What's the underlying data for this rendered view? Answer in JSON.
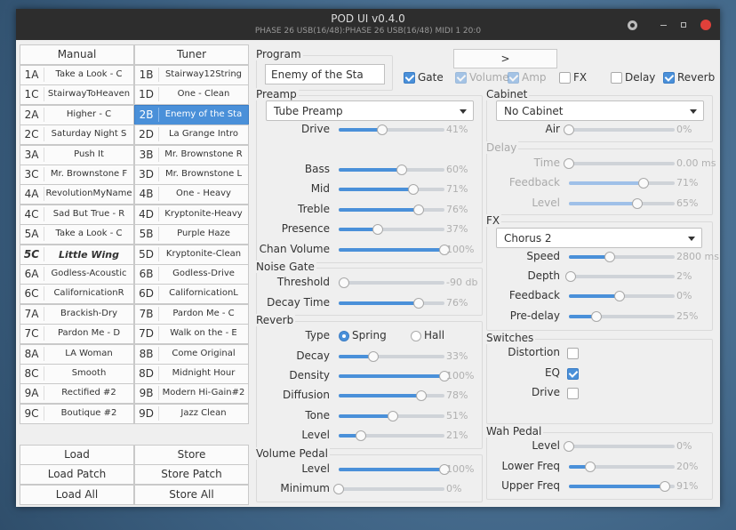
{
  "window": {
    "title": "POD UI v0.4.0",
    "subtitle": "PHASE 26 USB(16/48):PHASE 26 USB(16/48) MIDI 1 20:0"
  },
  "tabs": [
    "Manual",
    "Tuner"
  ],
  "programs": [
    [
      {
        "id": "1A",
        "name": "Take a Look - C"
      },
      {
        "id": "1B",
        "name": "Stairway12String"
      }
    ],
    [
      {
        "id": "1C",
        "name": "StairwayToHeaven"
      },
      {
        "id": "1D",
        "name": "One - Clean"
      }
    ],
    [
      {
        "id": "2A",
        "name": "Higher - C"
      },
      {
        "id": "2B",
        "name": "Enemy of the Sta",
        "selected": true
      }
    ],
    [
      {
        "id": "2C",
        "name": "Saturday Night S"
      },
      {
        "id": "2D",
        "name": "La Grange Intro"
      }
    ],
    [
      {
        "id": "3A",
        "name": "Push It"
      },
      {
        "id": "3B",
        "name": "Mr. Brownstone R"
      }
    ],
    [
      {
        "id": "3C",
        "name": "Mr. Brownstone F"
      },
      {
        "id": "3D",
        "name": "Mr. Brownstone L"
      }
    ],
    [
      {
        "id": "4A",
        "name": "RevolutionMyName"
      },
      {
        "id": "4B",
        "name": "One - Heavy"
      }
    ],
    [
      {
        "id": "4C",
        "name": "Sad But True - R"
      },
      {
        "id": "4D",
        "name": "Kryptonite-Heavy"
      }
    ],
    [
      {
        "id": "5A",
        "name": "Take a Look - C"
      },
      {
        "id": "5B",
        "name": "Purple Haze"
      }
    ],
    [
      {
        "id": "5C",
        "name": "Little Wing",
        "current": true
      },
      {
        "id": "5D",
        "name": "Kryptonite-Clean"
      }
    ],
    [
      {
        "id": "6A",
        "name": "Godless-Acoustic"
      },
      {
        "id": "6B",
        "name": "Godless-Drive"
      }
    ],
    [
      {
        "id": "6C",
        "name": "CalifornicationR"
      },
      {
        "id": "6D",
        "name": "CalifornicationL"
      }
    ],
    [
      {
        "id": "7A",
        "name": "Brackish-Dry"
      },
      {
        "id": "7B",
        "name": "Pardon Me - C"
      }
    ],
    [
      {
        "id": "7C",
        "name": "Pardon Me - D"
      },
      {
        "id": "7D",
        "name": "Walk on the - E"
      }
    ],
    [
      {
        "id": "8A",
        "name": "LA Woman"
      },
      {
        "id": "8B",
        "name": "Come Original"
      }
    ],
    [
      {
        "id": "8C",
        "name": "Smooth"
      },
      {
        "id": "8D",
        "name": "Midnight Hour"
      }
    ],
    [
      {
        "id": "9A",
        "name": "Rectified #2"
      },
      {
        "id": "9B",
        "name": "Modern Hi-Gain#2"
      }
    ],
    [
      {
        "id": "9C",
        "name": "Boutique #2"
      },
      {
        "id": "9D",
        "name": "Jazz Clean"
      }
    ]
  ],
  "file_buttons": [
    [
      "Load",
      "Store"
    ],
    [
      "Load Patch",
      "Store Patch"
    ],
    [
      "Load All",
      "Store All"
    ]
  ],
  "program": {
    "label": "Program",
    "name": "Enemy of the Sta",
    "next": ">"
  },
  "toggles": [
    {
      "label": "Gate",
      "checked": true,
      "enabled": true
    },
    {
      "label": "Volume",
      "checked": true,
      "enabled": false
    },
    {
      "label": "Amp",
      "checked": true,
      "enabled": false
    },
    {
      "label": "FX",
      "checked": false,
      "enabled": true
    },
    {
      "label": "Delay",
      "checked": false,
      "enabled": true
    },
    {
      "label": "Reverb",
      "checked": true,
      "enabled": true
    }
  ],
  "panels": [
    {
      "title": "Preamp",
      "enabled": true,
      "combo": "Tube Preamp",
      "controls": [
        {
          "label": "Drive",
          "value": "41%"
        },
        {
          "label": "Bass",
          "value": "60%"
        },
        {
          "label": "Mid",
          "value": "71%"
        },
        {
          "label": "Treble",
          "value": "76%"
        },
        {
          "label": "Presence",
          "value": "37%"
        },
        {
          "label": "Chan Volume",
          "value": "100%"
        }
      ]
    },
    {
      "title": "Noise Gate",
      "enabled": true,
      "controls": [
        {
          "label": "Threshold",
          "value": "-90 db"
        },
        {
          "label": "Decay Time",
          "value": "76%"
        }
      ]
    },
    {
      "title": "Reverb",
      "enabled": true,
      "controls": [
        {
          "label": "Type",
          "options": [
            "Spring",
            "Hall"
          ],
          "selected": 0
        },
        {
          "label": "Decay",
          "value": "33%"
        },
        {
          "label": "Density",
          "value": "100%"
        },
        {
          "label": "Diffusion",
          "value": "78%"
        },
        {
          "label": "Tone",
          "value": "51%"
        },
        {
          "label": "Level",
          "value": "21%"
        }
      ]
    },
    {
      "title": "Volume Pedal",
      "enabled": true,
      "controls": [
        {
          "label": "Level",
          "value": "100%"
        },
        {
          "label": "Minimum",
          "value": "0%"
        }
      ]
    },
    {
      "title": "Cabinet",
      "enabled": true,
      "combo": "No Cabinet",
      "controls": [
        {
          "label": "Air",
          "value": "0%"
        }
      ]
    },
    {
      "title": "Delay",
      "enabled": false,
      "controls": [
        {
          "label": "Time",
          "value": "0.00 ms"
        },
        {
          "label": "Feedback",
          "value": "71%"
        },
        {
          "label": "Level",
          "value": "65%"
        }
      ]
    },
    {
      "title": "FX",
      "enabled": true,
      "combo": "Chorus 2",
      "controls": [
        {
          "label": "Speed",
          "value": "2800 ms"
        },
        {
          "label": "Depth",
          "value": "2%"
        },
        {
          "label": "Feedback",
          "value": "0%"
        },
        {
          "label": "Pre-delay",
          "value": "25%"
        }
      ]
    },
    {
      "title": "Switches",
      "enabled": true,
      "controls": [
        {
          "label": "Distortion",
          "checked": false
        },
        {
          "label": "EQ",
          "checked": true
        },
        {
          "label": "Drive",
          "checked": false
        }
      ]
    },
    {
      "title": "Wah Pedal",
      "enabled": true,
      "controls": [
        {
          "label": "Level",
          "value": "0%"
        },
        {
          "label": "Lower Freq",
          "value": "20%"
        },
        {
          "label": "Upper Freq",
          "value": "91%"
        }
      ]
    }
  ]
}
